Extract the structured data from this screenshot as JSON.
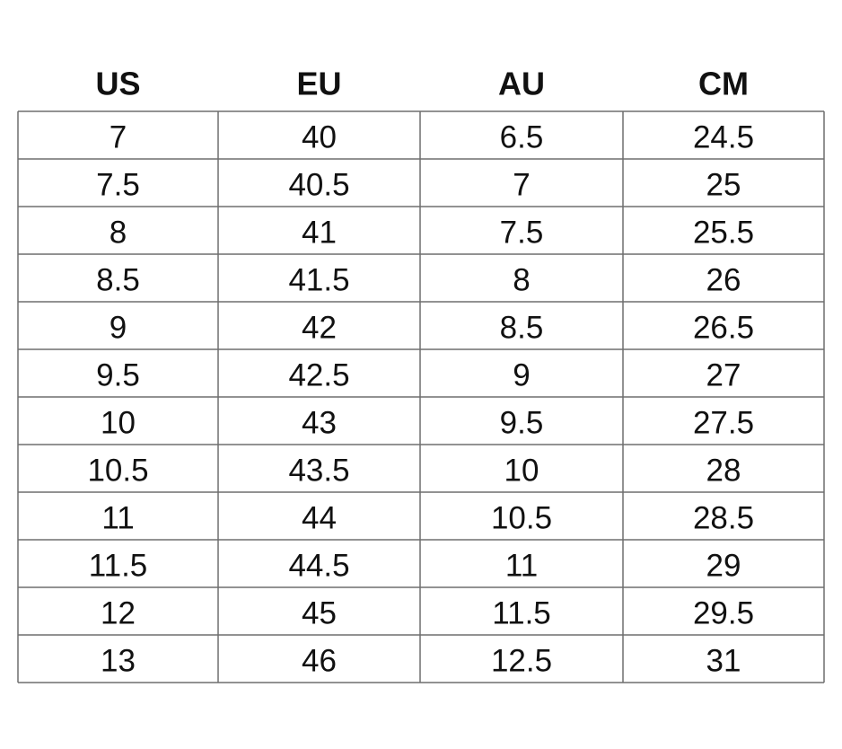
{
  "table": {
    "header": [
      "US",
      "EU",
      "AU",
      "CM"
    ],
    "rows": [
      [
        "7",
        "40",
        "6.5",
        "24.5"
      ],
      [
        "7.5",
        "40.5",
        "7",
        "25"
      ],
      [
        "8",
        "41",
        "7.5",
        "25.5"
      ],
      [
        "8.5",
        "41.5",
        "8",
        "26"
      ],
      [
        "9",
        "42",
        "8.5",
        "26.5"
      ],
      [
        "9.5",
        "42.5",
        "9",
        "27"
      ],
      [
        "10",
        "43",
        "9.5",
        "27.5"
      ],
      [
        "10.5",
        "43.5",
        "10",
        "28"
      ],
      [
        "11",
        "44",
        "10.5",
        "28.5"
      ],
      [
        "11.5",
        "44.5",
        "11",
        "29"
      ],
      [
        "12",
        "45",
        "11.5",
        "29.5"
      ],
      [
        "13",
        "46",
        "12.5",
        "31"
      ]
    ]
  }
}
